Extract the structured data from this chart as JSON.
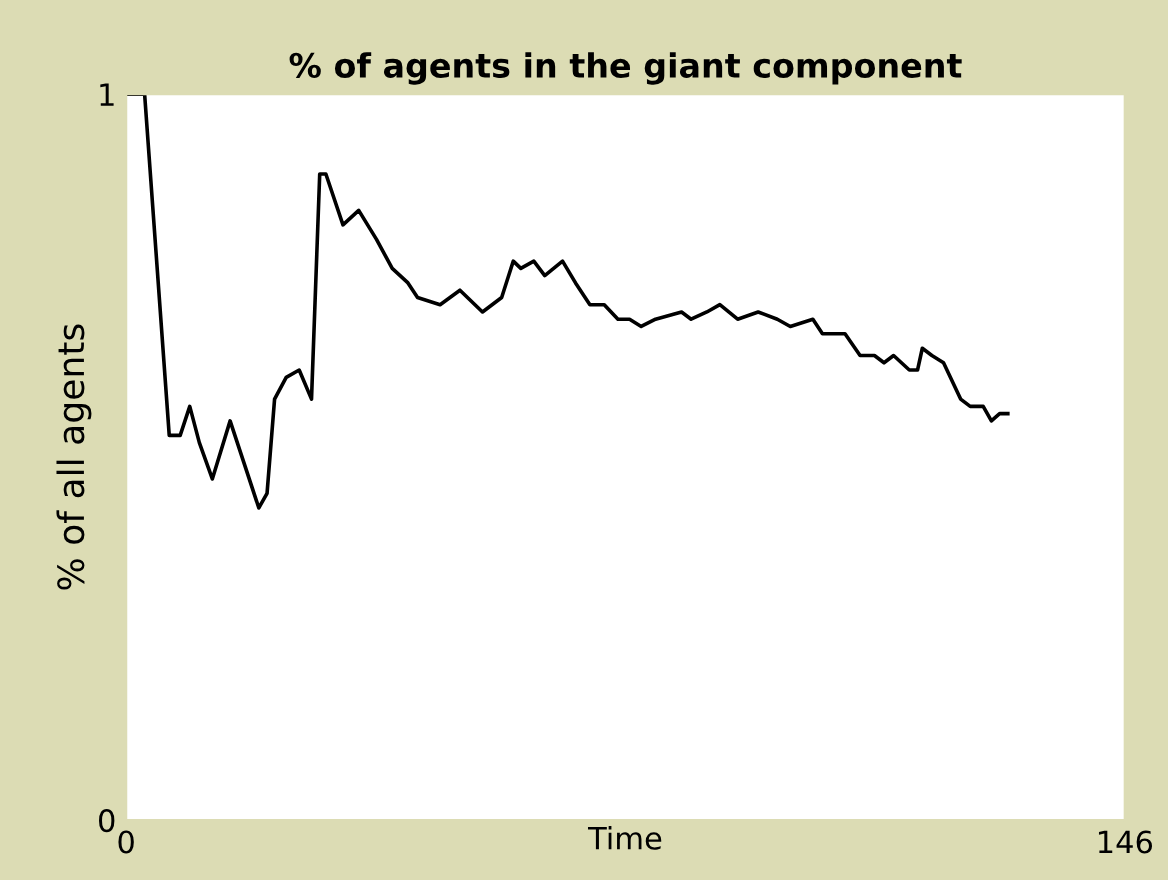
{
  "chart_data": {
    "type": "line",
    "title": "% of agents in the giant component",
    "xlabel": "Time",
    "ylabel": "% of all agents",
    "x": [
      0,
      2.7,
      6.3,
      7.9,
      9.3,
      10.7,
      12.6,
      15.2,
      19.4,
      20.6,
      21.7,
      23.4,
      25.3,
      27.1,
      28.3,
      29.2,
      31.7,
      34.0,
      36.6,
      38.9,
      41.2,
      42.6,
      45.9,
      48.8,
      52.1,
      54.9,
      56.6,
      57.7,
      59.6,
      61.2,
      63.8,
      65.7,
      67.8,
      69.9,
      71.9,
      73.6,
      75.3,
      77.4,
      81.2,
      82.6,
      84.9,
      86.8,
      89.4,
      92.4,
      95.2,
      97.1,
      100.4,
      101.8,
      105.1,
      107.3,
      109.4,
      110.8,
      112.2,
      114.5,
      115.7,
      116.4,
      117.8,
      119.5,
      122.0,
      123.4,
      125.3,
      126.5,
      127.7,
      128.9
    ],
    "series": [
      {
        "color": "#000000",
        "values": [
          1.0,
          1.0,
          0.53,
          0.53,
          0.57,
          0.52,
          0.47,
          0.55,
          0.43,
          0.45,
          0.58,
          0.61,
          0.62,
          0.58,
          0.89,
          0.89,
          0.82,
          0.84,
          0.8,
          0.76,
          0.74,
          0.72,
          0.71,
          0.73,
          0.7,
          0.72,
          0.77,
          0.76,
          0.77,
          0.75,
          0.77,
          0.74,
          0.71,
          0.71,
          0.69,
          0.69,
          0.68,
          0.69,
          0.7,
          0.69,
          0.7,
          0.71,
          0.69,
          0.7,
          0.69,
          0.68,
          0.69,
          0.67,
          0.67,
          0.64,
          0.64,
          0.63,
          0.64,
          0.62,
          0.62,
          0.65,
          0.64,
          0.63,
          0.58,
          0.57,
          0.57,
          0.55,
          0.56,
          0.56
        ]
      }
    ],
    "xlim": [
      0,
      146
    ],
    "ylim": [
      0,
      1
    ],
    "xticks": [
      0,
      146
    ],
    "yticks": [
      0,
      1
    ],
    "grid": false,
    "legend": false,
    "marker": "none",
    "line_style": "solid"
  }
}
